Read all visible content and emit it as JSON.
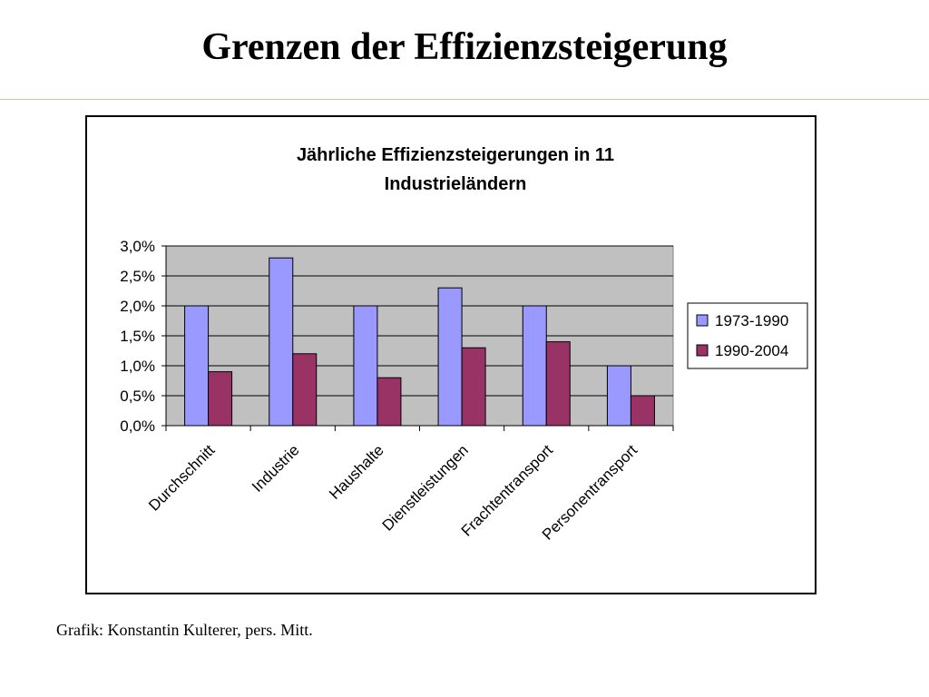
{
  "slide": {
    "title": "Grenzen der Effizienzsteigerung",
    "caption": "Grafik: Konstantin Kulterer, pers. Mitt."
  },
  "chart_data": {
    "type": "bar",
    "title_lines": [
      "Jährliche Effizienzsteigerungen in 11",
      "Industrieländern"
    ],
    "categories": [
      "Durchschnitt",
      "Industrie",
      "Haushalte",
      "Dienstleistungen",
      "Frachtentransport",
      "Personentransport"
    ],
    "series": [
      {
        "name": "1973-1990",
        "values": [
          2.0,
          2.8,
          2.0,
          2.3,
          2.0,
          1.0
        ],
        "color": "#9999ff"
      },
      {
        "name": "1990-2004",
        "values": [
          0.9,
          1.2,
          0.8,
          1.3,
          1.4,
          0.5
        ],
        "color": "#993366"
      }
    ],
    "ylim": [
      0,
      3.0
    ],
    "yticks": [
      "0,0%",
      "0,5%",
      "1,0%",
      "1,5%",
      "2,0%",
      "2,5%",
      "3,0%"
    ],
    "grid": true,
    "plot_background": "#c0c0c0",
    "legend_position": "right"
  }
}
